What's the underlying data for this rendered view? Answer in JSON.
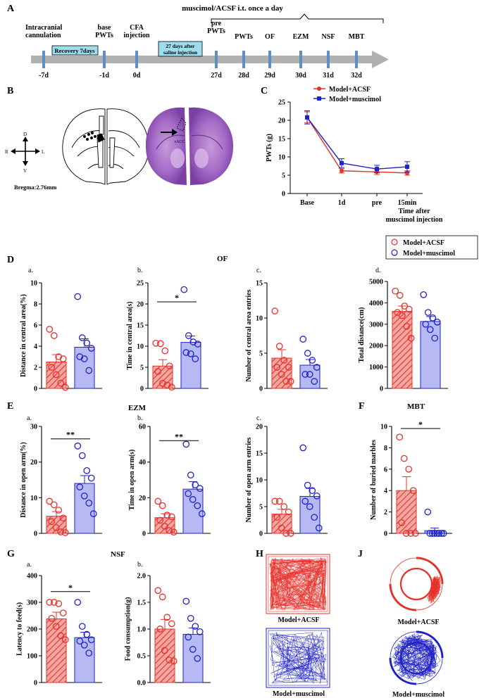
{
  "colors": {
    "acsf": "#e8302a",
    "acsf_fill": "#f3a7a1",
    "muscimol": "#1e22c8",
    "muscimol_fill": "#b7b9f5",
    "timeline": "#b0b0b0",
    "box": "#9ddcec",
    "tick": "#5b8fc7"
  },
  "panel_letters": {
    "A": "A",
    "B": "B",
    "C": "C",
    "D": "D",
    "E": "E",
    "F": "F",
    "G": "G",
    "H": "H",
    "J": "J"
  },
  "timeline": {
    "header": "muscimol/ACSF i.t.  once a day",
    "events": [
      {
        "label": "Intracranial\ncannulation",
        "day": "-7d"
      },
      {
        "label": "base\nPWTs",
        "day": "-1d"
      },
      {
        "label": "CFA\ninjection",
        "day": "0d"
      },
      {
        "label": "pre\nPWTs",
        "day": "27d"
      },
      {
        "label": "PWTs",
        "day": "28d"
      },
      {
        "label": "OF",
        "day": "29d"
      },
      {
        "label": "EZM",
        "day": "30d"
      },
      {
        "label": "NSF",
        "day": "31d"
      },
      {
        "label": "MBT",
        "day": "32d"
      }
    ],
    "box1": "Recovery 7days",
    "box2": "27 days after\nsaline injection"
  },
  "panel_b": {
    "bregma": "Bregma:2.76mm",
    "dirs": {
      "d": "D",
      "v": "V",
      "l": "L",
      "r": "R"
    },
    "acc_label": "rACC"
  },
  "chart_c": {
    "type": "line",
    "categories": [
      "Base",
      "1d",
      "pre",
      "15min"
    ],
    "series": [
      {
        "name": "Model+ACSF",
        "values": [
          20.8,
          6.2,
          5.9,
          5.6
        ],
        "err": [
          1.5,
          0.6,
          0.7,
          0.6
        ]
      },
      {
        "name": "Model+muscimol",
        "values": [
          20.8,
          8.3,
          6.7,
          7.3
        ],
        "err": [
          1.8,
          1.2,
          1.0,
          1.4
        ]
      }
    ],
    "ylabel": "PWTs (g)",
    "xlabel": "Time after\nmuscimol injection",
    "yticks": [
      0,
      5,
      10,
      15,
      20,
      25
    ],
    "ylim": [
      0,
      25
    ]
  },
  "legend": {
    "acsf": "Model+ACSF",
    "muscimol": "Model+muscimol"
  },
  "section_titles": {
    "of": "OF",
    "ezm": "EZM",
    "mbt": "MBT",
    "nsf": "NSF"
  },
  "chart_data": [
    {
      "id": "Da",
      "type": "bar",
      "title": "a.",
      "ylabel": "Distance in central area(%)",
      "yticks": [
        0,
        2,
        4,
        6,
        8,
        10
      ],
      "ylim": [
        0,
        10
      ],
      "categories": [
        "Model+ACSF",
        "Model+muscimol"
      ],
      "values": [
        2.5,
        3.9
      ],
      "err": [
        0.7,
        0.8
      ],
      "points": [
        [
          5.6,
          5.0,
          3.0,
          2.8,
          2.0,
          1.3,
          0.5,
          0.1
        ],
        [
          8.7,
          4.8,
          4.3,
          3.8,
          3.0,
          2.8,
          1.7
        ]
      ],
      "sig": ""
    },
    {
      "id": "Db",
      "type": "bar",
      "title": "b.",
      "ylabel": "Time in central area(s)",
      "yticks": [
        0,
        5,
        10,
        15,
        20,
        25
      ],
      "ylim": [
        0,
        25
      ],
      "categories": [
        "Model+ACSF",
        "Model+muscimol"
      ],
      "values": [
        5.3,
        10.9
      ],
      "err": [
        1.5,
        1.5
      ],
      "points": [
        [
          10.7,
          10.6,
          8.9,
          5.3,
          4.0,
          1.2,
          0.8,
          0.3
        ],
        [
          23.4,
          12.5,
          11.0,
          10.5,
          8.5,
          8.2,
          7.0
        ]
      ],
      "sig": "*"
    },
    {
      "id": "Dc",
      "type": "bar",
      "title": "c.",
      "ylabel": "Number of central area entries",
      "yticks": [
        0,
        5,
        10,
        15
      ],
      "ylim": [
        0,
        15
      ],
      "categories": [
        "Model+ACSF",
        "Model+muscimol"
      ],
      "values": [
        4.3,
        3.3
      ],
      "err": [
        1.2,
        0.8
      ],
      "points": [
        [
          11,
          6,
          4,
          3,
          3,
          2,
          1,
          1
        ],
        [
          7,
          5,
          4,
          3,
          2,
          2,
          1
        ]
      ],
      "sig": ""
    },
    {
      "id": "Dd",
      "type": "bar",
      "title": "d.",
      "ylabel": "Total distance(cm)",
      "yticks": [
        0,
        1000,
        2000,
        3000,
        4000,
        5000
      ],
      "ylim": [
        0,
        5000
      ],
      "categories": [
        "Model+ACSF",
        "Model+muscimol"
      ],
      "values": [
        3600,
        3130
      ],
      "err": [
        250,
        230
      ],
      "points": [
        [
          4550,
          4350,
          3850,
          3700,
          3550,
          3400,
          2900,
          2350
        ],
        [
          4380,
          3550,
          3300,
          3100,
          3000,
          2750,
          2350
        ]
      ],
      "sig": ""
    },
    {
      "id": "Ea",
      "type": "bar",
      "title": "a.",
      "ylabel": "Distance in open arm(%)",
      "yticks": [
        0,
        10,
        20,
        30
      ],
      "ylim": [
        0,
        30
      ],
      "categories": [
        "Model+ACSF",
        "Model+muscimol"
      ],
      "values": [
        4.8,
        14.0
      ],
      "err": [
        1.3,
        2.2
      ],
      "points": [
        [
          9.0,
          8.0,
          6.5,
          4.3,
          3.3,
          1.6,
          0.4,
          0.2
        ],
        [
          24.5,
          21.8,
          17.6,
          15.5,
          13.0,
          10.5,
          8.5,
          5.5
        ]
      ],
      "sig": "**"
    },
    {
      "id": "Eb",
      "type": "bar",
      "title": "b.",
      "ylabel": "Time in open arm(s)",
      "yticks": [
        0,
        20,
        40,
        60
      ],
      "ylim": [
        0,
        60
      ],
      "categories": [
        "Model+ACSF",
        "Model+muscimol"
      ],
      "values": [
        8.8,
        24.8
      ],
      "err": [
        2.2,
        4.2
      ],
      "points": [
        [
          18,
          15.5,
          10.2,
          9.3,
          7.3,
          4.0,
          1.6,
          0.7
        ],
        [
          50,
          32.7,
          27.2,
          25.2,
          22.3,
          19.0,
          15.5,
          11.0
        ]
      ],
      "sig": "**"
    },
    {
      "id": "Ec",
      "type": "bar",
      "title": "c.",
      "ylabel": "Number of open arm entries",
      "yticks": [
        0,
        5,
        10,
        15,
        20
      ],
      "ylim": [
        0,
        20
      ],
      "categories": [
        "Model+ACSF",
        "Model+muscimol"
      ],
      "values": [
        3.6,
        6.9
      ],
      "err": [
        0.9,
        1.5
      ],
      "points": [
        [
          6,
          6,
          5,
          4,
          3,
          1,
          0,
          0
        ],
        [
          16,
          9,
          8,
          7,
          6,
          5,
          3,
          1
        ]
      ],
      "sig": ""
    },
    {
      "id": "F",
      "type": "bar",
      "title": "",
      "ylabel": "Number of buried marbles",
      "yticks": [
        0,
        2,
        4,
        6,
        8,
        10
      ],
      "ylim": [
        0,
        10
      ],
      "categories": [
        "Model+ACSF",
        "Model+muscimol"
      ],
      "values": [
        4.0,
        0.25
      ],
      "err": [
        1.3,
        0.25
      ],
      "points": [
        [
          9,
          7,
          6,
          4,
          1,
          0,
          0,
          0
        ],
        [
          2,
          0,
          0,
          0,
          0,
          0,
          0,
          0
        ]
      ],
      "sig": "*"
    },
    {
      "id": "Ga",
      "type": "bar",
      "title": "a.",
      "ylabel": "Latency to feed(s)",
      "yticks": [
        0,
        100,
        200,
        300,
        400
      ],
      "ylim": [
        0,
        400
      ],
      "categories": [
        "Model+ACSF",
        "Model+muscimol"
      ],
      "values": [
        238,
        168
      ],
      "err": [
        25,
        20
      ],
      "points": [
        [
          300,
          300,
          295,
          260,
          240,
          210,
          175,
          160
        ],
        [
          300,
          210,
          180,
          160,
          155,
          140,
          110
        ]
      ],
      "sig": "*"
    },
    {
      "id": "Gb",
      "type": "bar",
      "title": "b.",
      "ylabel": "Food consumption(g)",
      "yticks": [
        0,
        0.5,
        1.0,
        1.5,
        2.0
      ],
      "ylim": [
        0,
        2.0
      ],
      "categories": [
        "Model+ACSF",
        "Model+muscimol"
      ],
      "values": [
        1.0,
        0.9
      ],
      "err": [
        0.18,
        0.12
      ],
      "points": [
        [
          1.72,
          1.6,
          1.22,
          1.1,
          1.0,
          0.6,
          0.42,
          0.4
        ],
        [
          1.52,
          1.2,
          1.05,
          0.95,
          0.85,
          0.62,
          0.45
        ]
      ],
      "sig": ""
    }
  ],
  "panel_h": {
    "top": "Model+ACSF",
    "bottom": "Model+muscimol"
  },
  "panel_j": {
    "top": "Model+ACSF",
    "bottom": "Model+muscimol"
  }
}
